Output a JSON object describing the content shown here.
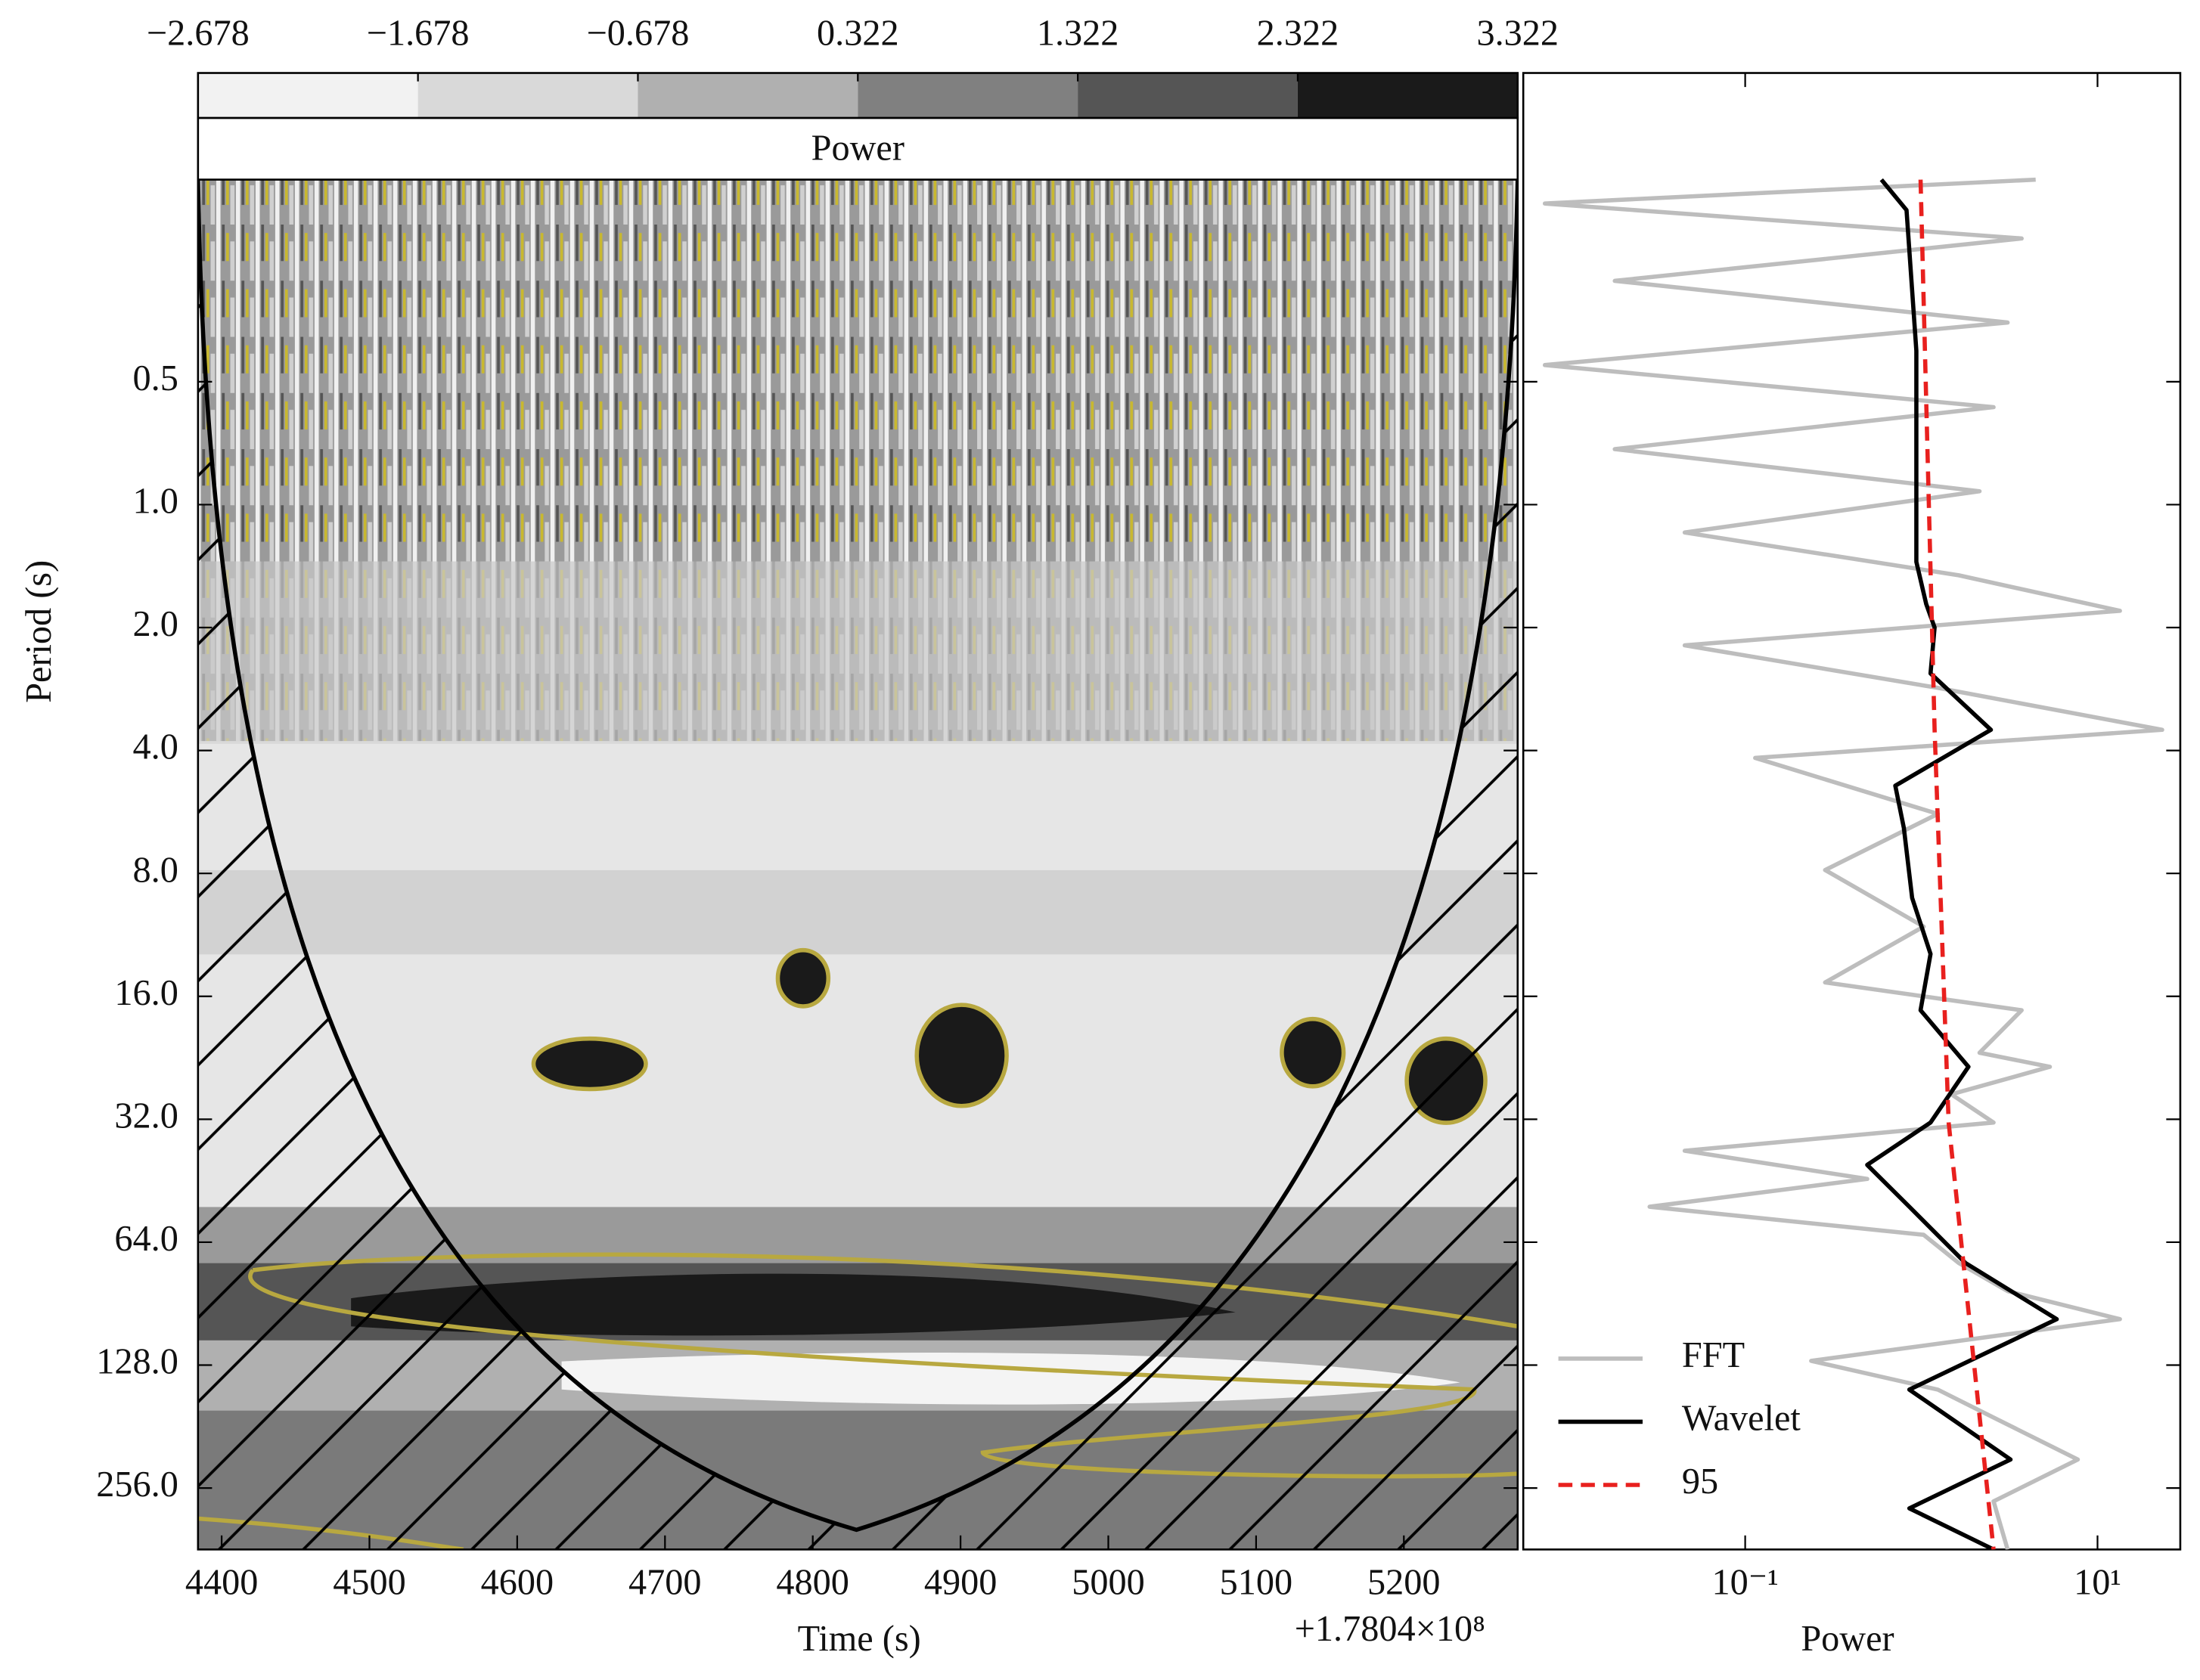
{
  "chart_data": [
    {
      "type": "heatmap",
      "title": "Power",
      "xlabel": "Time (s)",
      "ylabel": "Period (s)",
      "offset_text": "+1.7804×10⁸",
      "xlim": [
        4384,
        5277
      ],
      "xticks": [
        4400,
        4500,
        4600,
        4700,
        4800,
        4900,
        5000,
        5100,
        5200
      ],
      "ylim": [
        0.16,
        362
      ],
      "yscale": "log2",
      "yticks": [
        {
          "value": 0.5,
          "label": "0.5"
        },
        {
          "value": 1,
          "label": "1.0"
        },
        {
          "value": 2,
          "label": "2.0"
        },
        {
          "value": 4,
          "label": "4.0"
        },
        {
          "value": 8,
          "label": "8.0"
        },
        {
          "value": 16,
          "label": "16.0"
        },
        {
          "value": 32,
          "label": "32.0"
        },
        {
          "value": 64,
          "label": "64.0"
        },
        {
          "value": 128,
          "label": "128.0"
        },
        {
          "value": 256,
          "label": "256.0"
        }
      ],
      "colorbar_ticks": [
        {
          "value": -2.678,
          "label": "−2.678"
        },
        {
          "value": -1.678,
          "label": "−1.678"
        },
        {
          "value": -0.678,
          "label": "−0.678"
        },
        0.322,
        1.322,
        2.322,
        3.322
      ],
      "colorbar_colors": [
        "#f2f2f2",
        "#d9d9d9",
        "#b0b0b0",
        "#808080",
        "#555555",
        "#1a1a1a"
      ]
    },
    {
      "type": "line",
      "xlabel": "Power",
      "xscale": "log",
      "xlim": [
        0.0055,
        29.5
      ],
      "xticks": [
        {
          "value": 0.1,
          "label": "10⁻¹"
        },
        {
          "value": 10,
          "label": "10¹"
        }
      ],
      "ylim": [
        0.16,
        362
      ],
      "yscale": "log2",
      "yticks": [
        0.5,
        1,
        2,
        4,
        8,
        16,
        32,
        64,
        128,
        256
      ],
      "legend": "lower left",
      "series": [
        {
          "name": "FFT",
          "color": "#bdbdbd",
          "dash": false,
          "periods": [
            0.16,
            0.183,
            0.223,
            0.283,
            0.358,
            0.455,
            0.577,
            0.731,
            0.927,
            1.17,
            1.49,
            1.82,
            2.21,
            2.81,
            3.56,
            4.17,
            5.72,
            7.85,
            10.8,
            14.8,
            17.3,
            22.0,
            23.8,
            27.8,
            32.6,
            38.2,
            44.8,
            52.4,
            61.4,
            72,
            84.3,
            98.8,
            125,
            147,
            172,
            218,
            276,
            362
          ],
          "values": [
            4.46,
            0.0073,
            3.71,
            0.0182,
            3.09,
            0.0073,
            2.57,
            0.0182,
            2.14,
            0.0454,
            1.63,
            13.4,
            0.0454,
            1.24,
            23.3,
            0.114,
            1.24,
            0.284,
            1.03,
            0.284,
            3.71,
            2.14,
            5.36,
            1.48,
            2.57,
            0.0454,
            0.493,
            0.0287,
            1.03,
            1.63,
            3.09,
            13.4,
            0.237,
            1.24,
            2.57,
            7.73,
            2.57,
            3.09
          ]
        },
        {
          "name": "Wavelet",
          "color": "#000000",
          "dash": false,
          "periods": [
            0.16,
            0.19,
            0.42,
            1.38,
            1.75,
            2.0,
            2.59,
            3.56,
            4.88,
            6.19,
            9.19,
            12.6,
            17.3,
            23.8,
            32.6,
            41.4,
            52.4,
            72.0,
            98.8,
            147,
            218,
            287,
            362
          ],
          "values": [
            0.593,
            0.824,
            0.937,
            0.937,
            1.066,
            1.19,
            1.127,
            2.48,
            0.712,
            0.795,
            0.887,
            1.127,
            0.99,
            1.85,
            1.127,
            0.493,
            0.855,
            1.78,
            5.87,
            0.855,
            3.21,
            0.855,
            2.57
          ]
        },
        {
          "name": "95",
          "color": "#e8201e",
          "dash": true,
          "periods": [
            0.16,
            3.56,
            32.6,
            362
          ],
          "values": [
            0.99,
            1.19,
            1.43,
            2.57
          ]
        }
      ]
    }
  ]
}
